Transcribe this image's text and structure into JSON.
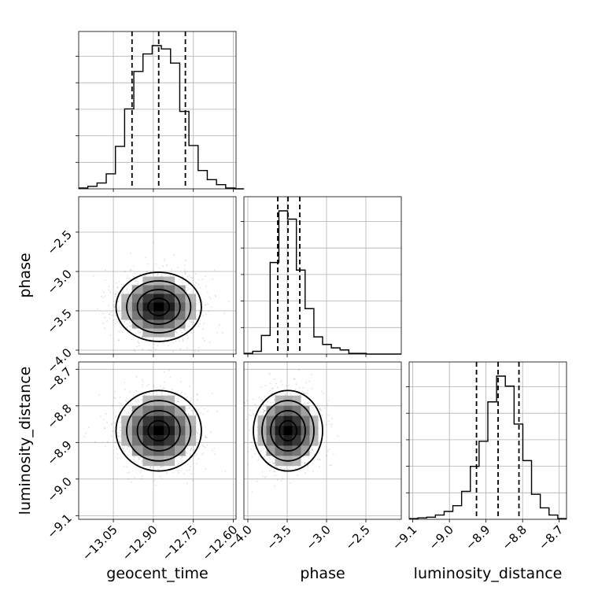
{
  "chart_data": {
    "type": "corner",
    "parameters": [
      "geocent_time",
      "phase",
      "luminosity_distance"
    ],
    "grid": true,
    "ranges": {
      "geocent_time": [
        -13.18,
        -12.59
      ],
      "phase": [
        -4.05,
        -2.05
      ],
      "luminosity_distance": [
        -9.11,
        -8.68
      ]
    },
    "ticks": {
      "geocent_time": {
        "values": [
          -13.05,
          -12.9,
          -12.75,
          -12.6
        ],
        "labels": [
          "−13.05",
          "−12.90",
          "−12.75",
          "−12.60"
        ]
      },
      "phase": {
        "values": [
          -4.0,
          -3.5,
          -3.0,
          -2.5
        ],
        "labels": [
          "−4.0",
          "−3.5",
          "−3.0",
          "−2.5"
        ]
      },
      "luminosity_distance": {
        "values": [
          -9.1,
          -9.0,
          -8.9,
          -8.8,
          -8.7
        ],
        "labels": [
          "−9.1",
          "−9.0",
          "−8.9",
          "−8.8",
          "−8.7"
        ]
      }
    },
    "histograms": [
      {
        "parameter": "geocent_time",
        "bin_edges": [
          -13.18,
          -13.1456,
          -13.1111,
          -13.0767,
          -13.0422,
          -13.0078,
          -12.9733,
          -12.9389,
          -12.9044,
          -12.87,
          -12.8355,
          -12.8011,
          -12.7667,
          -12.7322,
          -12.6978,
          -12.6633,
          -12.6289,
          -12.5944,
          -12.56
        ],
        "counts": [
          1,
          3,
          7,
          18,
          51,
          96,
          141,
          162,
          172,
          168,
          151,
          93,
          52,
          22,
          11,
          5,
          1,
          0
        ],
        "quantiles": [
          -12.98,
          -12.88,
          -12.78
        ]
      },
      {
        "parameter": "phase",
        "bin_edges": [
          -4.05,
          -3.9389,
          -3.8278,
          -3.7167,
          -3.6056,
          -3.4944,
          -3.3833,
          -3.2722,
          -3.1611,
          -3.05,
          -2.9389,
          -2.8278,
          -2.7167,
          -2.6056,
          -2.4944,
          -2.3833,
          -2.2722,
          -2.1611,
          -2.05
        ],
        "counts": [
          1,
          4,
          27,
          133,
          208,
          196,
          122,
          66,
          25,
          14,
          9,
          6,
          1,
          1,
          0,
          0,
          0,
          0
        ],
        "quantiles": [
          -3.62,
          -3.49,
          -3.34
        ]
      },
      {
        "parameter": "luminosity_distance",
        "bin_edges": [
          -9.11,
          -9.0861,
          -9.0622,
          -9.0383,
          -9.0144,
          -8.9906,
          -8.9667,
          -8.9428,
          -8.9189,
          -8.895,
          -8.8711,
          -8.8472,
          -8.8233,
          -8.7994,
          -8.7756,
          -8.7517,
          -8.7278,
          -8.7039,
          -8.68
        ],
        "counts": [
          1,
          2,
          3,
          6,
          11,
          19,
          39,
          74,
          109,
          164,
          200,
          186,
          133,
          82,
          35,
          16,
          6,
          1
        ],
        "quantiles": [
          -8.926,
          -8.867,
          -8.81
        ]
      }
    ],
    "correlations": [
      {
        "x": "geocent_time",
        "y": "phase",
        "center": [
          -12.88,
          -3.45
        ],
        "sigma": [
          0.08,
          0.22
        ]
      },
      {
        "x": "geocent_time",
        "y": "luminosity_distance",
        "center": [
          -12.88,
          -8.868
        ],
        "sigma": [
          0.08,
          0.055
        ]
      },
      {
        "x": "phase",
        "y": "luminosity_distance",
        "center": [
          -3.49,
          -8.868
        ],
        "sigma": [
          0.22,
          0.055
        ]
      }
    ]
  }
}
